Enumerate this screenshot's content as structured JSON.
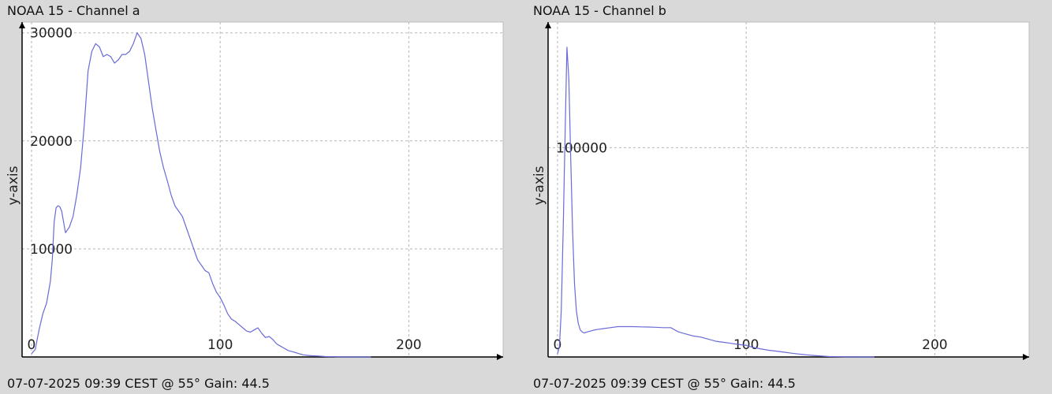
{
  "chart_data": [
    {
      "type": "line",
      "title": "NOAA 15 - Channel a",
      "footer": "07-07-2025 09:39 CEST @ 55° Gain: 44.5",
      "xlabel": "",
      "ylabel": "y-axis",
      "xlim": [
        -5,
        250
      ],
      "ylim": [
        0,
        31000
      ],
      "xticks": [
        0,
        100,
        200
      ],
      "yticks": [
        10000,
        20000,
        30000
      ],
      "grid": true,
      "line_color": "#6a6ad8",
      "series": [
        {
          "x": [
            0,
            2,
            4,
            6,
            8,
            10,
            11,
            12,
            13,
            14,
            15,
            16,
            18,
            20,
            22,
            24,
            26,
            28,
            30,
            32,
            34,
            36,
            38,
            40,
            42,
            44,
            46,
            48,
            50,
            52,
            54,
            56,
            58,
            60,
            62,
            64,
            66,
            68,
            70,
            72,
            74,
            76,
            78,
            80,
            82,
            84,
            86,
            88,
            90,
            92,
            94,
            96,
            98,
            100,
            102,
            104,
            106,
            108,
            110,
            112,
            114,
            116,
            118,
            120,
            122,
            124,
            126,
            128,
            130,
            132,
            134,
            136,
            138,
            140,
            142,
            144,
            146,
            148,
            150,
            152,
            154,
            156,
            158,
            160,
            162,
            164,
            166,
            168,
            170,
            172,
            174,
            176,
            178,
            180
          ],
          "y": [
            300,
            700,
            2500,
            4000,
            5000,
            7000,
            9000,
            12500,
            13800,
            14000,
            13900,
            13500,
            11500,
            12000,
            13000,
            15000,
            17500,
            21500,
            26500,
            28300,
            29000,
            28700,
            27800,
            28000,
            27800,
            27200,
            27500,
            28000,
            28000,
            28300,
            29000,
            30000,
            29500,
            28000,
            25500,
            23000,
            21000,
            19000,
            17500,
            16300,
            15000,
            14000,
            13500,
            13000,
            12000,
            11000,
            10000,
            9000,
            8500,
            8000,
            7800,
            6800,
            6000,
            5500,
            4800,
            4000,
            3500,
            3300,
            3000,
            2700,
            2400,
            2300,
            2500,
            2700,
            2200,
            1800,
            1900,
            1600,
            1200,
            1000,
            800,
            600,
            500,
            400,
            300,
            200,
            150,
            120,
            100,
            80,
            60,
            40,
            30,
            20,
            10,
            5,
            0,
            0,
            0,
            0,
            0,
            0,
            0,
            0
          ]
        }
      ]
    },
    {
      "type": "line",
      "title": "NOAA 15 - Channel b",
      "footer": "07-07-2025 09:39 CEST @ 55° Gain: 44.5",
      "xlabel": "",
      "ylabel": "y-axis",
      "xlim": [
        -5,
        250
      ],
      "ylim": [
        0,
        160000
      ],
      "xticks": [
        0,
        100,
        200
      ],
      "yticks": [
        100000
      ],
      "grid": true,
      "line_color": "#6a6ad8",
      "series": [
        {
          "x": [
            0,
            1,
            2,
            3,
            4,
            5,
            6,
            7,
            8,
            9,
            10,
            11,
            12,
            13,
            14,
            16,
            18,
            20,
            24,
            28,
            32,
            36,
            40,
            44,
            48,
            52,
            56,
            60,
            64,
            68,
            72,
            76,
            80,
            84,
            88,
            92,
            96,
            100,
            104,
            108,
            112,
            116,
            120,
            124,
            128,
            132,
            136,
            140,
            144,
            148,
            152,
            156,
            160,
            164,
            168
          ],
          "y": [
            1500,
            5000,
            22000,
            60000,
            105000,
            148000,
            133000,
            95000,
            60000,
            35000,
            22000,
            16000,
            13000,
            12000,
            11500,
            12000,
            12500,
            13000,
            13500,
            14000,
            14500,
            14500,
            14500,
            14400,
            14300,
            14200,
            14000,
            14000,
            12000,
            11000,
            10000,
            9500,
            8500,
            7500,
            7000,
            6500,
            6000,
            5500,
            4500,
            3800,
            3200,
            2800,
            2300,
            1800,
            1400,
            1000,
            700,
            400,
            200,
            100,
            50,
            20,
            0,
            0,
            0
          ]
        }
      ]
    }
  ]
}
